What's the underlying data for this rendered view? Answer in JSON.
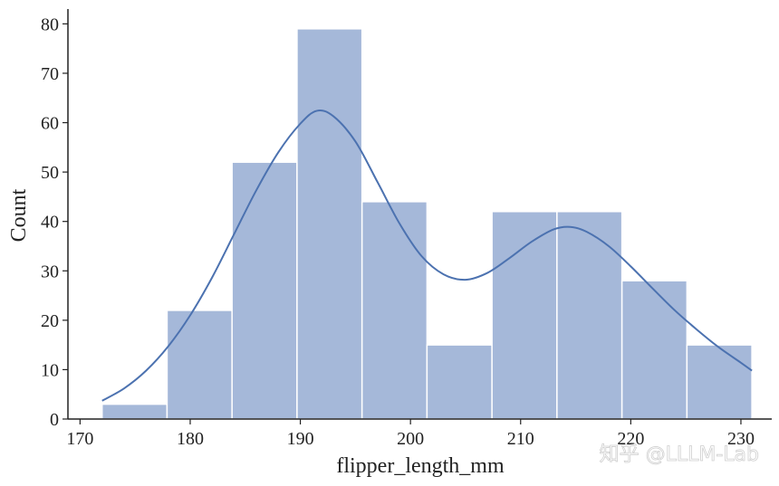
{
  "chart_data": {
    "type": "bar",
    "subtype": "histogram-with-kde",
    "xlabel": "flipper_length_mm",
    "ylabel": "Count",
    "xlim": [
      168.9,
      232.8
    ],
    "ylim": [
      0,
      83
    ],
    "xticks": [
      170,
      180,
      190,
      200,
      210,
      220,
      230
    ],
    "yticks": [
      0,
      10,
      20,
      30,
      40,
      50,
      60,
      70,
      80
    ],
    "bins": [
      {
        "start": 172.0,
        "end": 177.9,
        "count": 3
      },
      {
        "start": 177.9,
        "end": 183.8,
        "count": 22
      },
      {
        "start": 183.8,
        "end": 189.7,
        "count": 52
      },
      {
        "start": 189.7,
        "end": 195.6,
        "count": 79
      },
      {
        "start": 195.6,
        "end": 201.5,
        "count": 44
      },
      {
        "start": 201.5,
        "end": 207.4,
        "count": 15
      },
      {
        "start": 207.4,
        "end": 213.3,
        "count": 42
      },
      {
        "start": 213.3,
        "end": 219.2,
        "count": 42
      },
      {
        "start": 219.2,
        "end": 225.1,
        "count": 28
      },
      {
        "start": 225.1,
        "end": 231.0,
        "count": 15
      }
    ],
    "kde": {
      "x": [
        172,
        174,
        176,
        178,
        180,
        182,
        184,
        186,
        188,
        190,
        191.5,
        193,
        195,
        197,
        199,
        201,
        203,
        205,
        207,
        209,
        211,
        213,
        214.5,
        216,
        218,
        220,
        222,
        224,
        226,
        228,
        230,
        231
      ],
      "y": [
        3.7,
        6.2,
        9.8,
        14.7,
        21.0,
        28.7,
        37.5,
        46.3,
        54.0,
        59.8,
        62.4,
        61.3,
        56.2,
        48.0,
        39.6,
        33.0,
        29.3,
        28.2,
        29.6,
        32.6,
        35.9,
        38.4,
        38.9,
        37.9,
        35.0,
        30.9,
        26.4,
        22.0,
        18.1,
        14.5,
        11.4,
        9.8
      ]
    },
    "grid": false,
    "colors": {
      "bar_fill": "#a5b8d9",
      "bar_edge": "#ffffff",
      "kde_line": "#4c72b0",
      "axis": "#222222"
    }
  },
  "watermark": "知乎 @LLLM-Lab"
}
